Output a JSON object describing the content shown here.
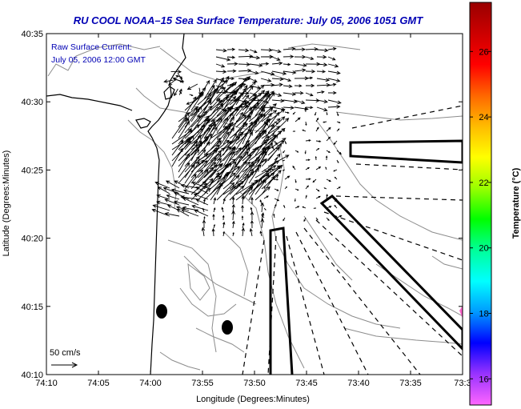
{
  "title": "RU COOL  NOAA–15  Sea Surface Temperature:  July 05, 2006 1051 GMT",
  "current_label": "Raw Surface Current:",
  "current_date": "July 05, 2006 12:00 GMT",
  "scale_label": "50 cm/s",
  "xlabel": "Longitude (Degrees:Minutes)",
  "ylabel": "Latitude (Degrees:Minutes)",
  "colorbar_label": "Temperature (°C)",
  "x_ticks": [
    "74:10",
    "74:05",
    "74:00",
    "73:55",
    "73:50",
    "73:45",
    "73:40",
    "73:35",
    "73:3"
  ],
  "y_ticks": [
    "40:35",
    "40:30",
    "40:25",
    "40:20",
    "40:15",
    "40:10"
  ],
  "colorbar_ticks": [
    "26",
    "24",
    "22",
    "20",
    "18",
    "16"
  ],
  "colorbar_range": [
    15.2,
    27.5
  ],
  "colors": {
    "title": "#0000b4",
    "contour": "#8c8c8c",
    "coast": "#000000",
    "vectors": "#000000"
  },
  "colorbar_stops": [
    "#ff66ff",
    "#9933ff",
    "#0000ff",
    "#0099ff",
    "#00ffff",
    "#00ff99",
    "#00ff00",
    "#99ff00",
    "#ffff00",
    "#ffbb00",
    "#ff6600",
    "#ff0000",
    "#cc0000",
    "#990000"
  ]
}
